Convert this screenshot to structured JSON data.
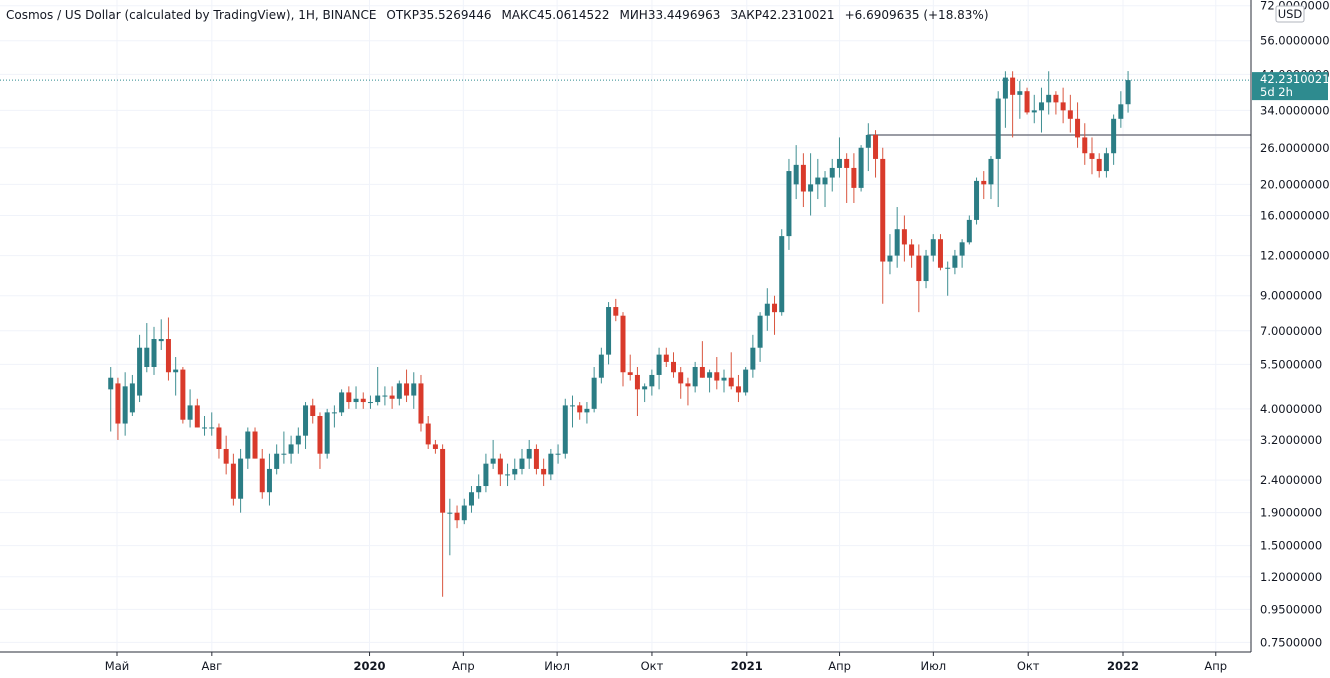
{
  "header": {
    "symbol": "Cosmos / US Dollar (calculated by TradingView), 1Н, BINANCE",
    "ohlc": [
      {
        "label": "ОТКР",
        "value": "35.5269446"
      },
      {
        "label": "МАКС",
        "value": "45.0614522"
      },
      {
        "label": "МИН",
        "value": "33.4496963"
      },
      {
        "label": "ЗАКР",
        "value": "42.2310021"
      }
    ],
    "change": "+6.6909635 (+18.83%)"
  },
  "price_scale": {
    "currency": "USD",
    "last_price": "42.2310021",
    "countdown": "5d 2h",
    "horizontal_level": 28.5
  },
  "colors": {
    "up": "#26a69a",
    "down": "#ef5350",
    "up_body": "#2b7d85",
    "down_body": "#d93a2b",
    "up_wick": "#3f8f92",
    "down_wick": "#d9563f",
    "last_price_label": "#2e8b8f",
    "level_line": "#787b86",
    "axis_border": "#2a2e39"
  },
  "chart_data": {
    "type": "candlestick",
    "title": "Cosmos / US Dollar (calculated by TradingView), 1Н, BINANCE",
    "xlabel": "",
    "ylabel": "",
    "y_scale": "log",
    "ylim": [
      0.68,
      75
    ],
    "x_ticks": [
      {
        "label": "Май",
        "bold": false,
        "at": "2019-05-01"
      },
      {
        "label": "Авг",
        "bold": false,
        "at": "2019-08-01"
      },
      {
        "label": "2020",
        "bold": true,
        "at": "2020-01-01"
      },
      {
        "label": "Апр",
        "bold": false,
        "at": "2020-04-01"
      },
      {
        "label": "Июл",
        "bold": false,
        "at": "2020-07-01"
      },
      {
        "label": "Окт",
        "bold": false,
        "at": "2020-10-01"
      },
      {
        "label": "2021",
        "bold": true,
        "at": "2021-01-01"
      },
      {
        "label": "Апр",
        "bold": false,
        "at": "2021-04-01"
      },
      {
        "label": "Июл",
        "bold": false,
        "at": "2021-07-01"
      },
      {
        "label": "Окт",
        "bold": false,
        "at": "2021-10-01"
      },
      {
        "label": "2022",
        "bold": true,
        "at": "2022-01-01"
      },
      {
        "label": "Апр",
        "bold": false,
        "at": "2022-04-01"
      }
    ],
    "y_ticks": [
      "72.0000000",
      "56.0000000",
      "44.0000000",
      "34.0000000",
      "26.0000000",
      "20.0000000",
      "16.0000000",
      "12.0000000",
      "9.0000000",
      "7.0000000",
      "5.5000000",
      "4.0000000",
      "3.2000000",
      "2.4000000",
      "1.9000000",
      "1.5000000",
      "1.2000000",
      "0.9500000",
      "0.7500000"
    ],
    "legend": null,
    "grid": true,
    "candles": [
      {
        "date": "2019-04-22",
        "o": 4.6,
        "h": 5.4,
        "l": 3.4,
        "c": 5.0
      },
      {
        "date": "2019-04-29",
        "o": 4.8,
        "h": 5.0,
        "l": 3.2,
        "c": 3.6
      },
      {
        "date": "2019-05-06",
        "o": 3.6,
        "h": 5.2,
        "l": 3.3,
        "c": 4.7
      },
      {
        "date": "2019-05-13",
        "o": 3.9,
        "h": 5.1,
        "l": 3.8,
        "c": 4.8
      },
      {
        "date": "2019-05-20",
        "o": 4.4,
        "h": 6.8,
        "l": 4.2,
        "c": 6.2
      },
      {
        "date": "2019-05-27",
        "o": 5.4,
        "h": 7.4,
        "l": 5.2,
        "c": 6.2
      },
      {
        "date": "2019-06-03",
        "o": 5.4,
        "h": 7.2,
        "l": 5.1,
        "c": 6.6
      },
      {
        "date": "2019-06-10",
        "o": 6.5,
        "h": 7.6,
        "l": 6.1,
        "c": 6.6
      },
      {
        "date": "2019-06-17",
        "o": 6.6,
        "h": 7.7,
        "l": 4.9,
        "c": 5.2
      },
      {
        "date": "2019-06-24",
        "o": 5.2,
        "h": 5.8,
        "l": 4.4,
        "c": 5.3
      },
      {
        "date": "2019-07-01",
        "o": 5.3,
        "h": 5.4,
        "l": 3.6,
        "c": 3.7
      },
      {
        "date": "2019-07-08",
        "o": 3.7,
        "h": 4.6,
        "l": 3.5,
        "c": 4.1
      },
      {
        "date": "2019-07-15",
        "o": 4.1,
        "h": 4.3,
        "l": 3.5,
        "c": 3.5
      },
      {
        "date": "2019-07-22",
        "o": 3.5,
        "h": 3.8,
        "l": 3.3,
        "c": 3.5
      },
      {
        "date": "2019-07-29",
        "o": 3.5,
        "h": 3.9,
        "l": 3.3,
        "c": 3.5
      },
      {
        "date": "2019-08-05",
        "o": 3.5,
        "h": 3.6,
        "l": 2.8,
        "c": 3.0
      },
      {
        "date": "2019-08-12",
        "o": 3.0,
        "h": 3.3,
        "l": 2.5,
        "c": 2.7
      },
      {
        "date": "2019-08-19",
        "o": 2.7,
        "h": 2.9,
        "l": 2.0,
        "c": 2.1
      },
      {
        "date": "2019-08-26",
        "o": 2.1,
        "h": 3.0,
        "l": 1.9,
        "c": 2.8
      },
      {
        "date": "2019-09-02",
        "o": 2.8,
        "h": 3.5,
        "l": 2.6,
        "c": 3.4
      },
      {
        "date": "2019-09-09",
        "o": 3.4,
        "h": 3.5,
        "l": 2.8,
        "c": 2.8
      },
      {
        "date": "2019-09-16",
        "o": 2.8,
        "h": 3.0,
        "l": 2.1,
        "c": 2.2
      },
      {
        "date": "2019-09-23",
        "o": 2.2,
        "h": 2.9,
        "l": 2.0,
        "c": 2.6
      },
      {
        "date": "2019-09-30",
        "o": 2.6,
        "h": 3.1,
        "l": 2.5,
        "c": 2.9
      },
      {
        "date": "2019-10-07",
        "o": 2.9,
        "h": 3.4,
        "l": 2.7,
        "c": 2.9
      },
      {
        "date": "2019-10-14",
        "o": 2.9,
        "h": 3.3,
        "l": 2.7,
        "c": 3.1
      },
      {
        "date": "2019-10-21",
        "o": 3.1,
        "h": 3.5,
        "l": 2.9,
        "c": 3.3
      },
      {
        "date": "2019-10-28",
        "o": 3.3,
        "h": 4.2,
        "l": 3.0,
        "c": 4.1
      },
      {
        "date": "2019-11-04",
        "o": 4.1,
        "h": 4.3,
        "l": 3.6,
        "c": 3.8
      },
      {
        "date": "2019-11-11",
        "o": 3.8,
        "h": 3.9,
        "l": 2.6,
        "c": 2.9
      },
      {
        "date": "2019-11-18",
        "o": 2.9,
        "h": 4.0,
        "l": 2.8,
        "c": 3.9
      },
      {
        "date": "2019-11-25",
        "o": 3.9,
        "h": 4.1,
        "l": 3.5,
        "c": 3.9
      },
      {
        "date": "2019-12-02",
        "o": 3.9,
        "h": 4.6,
        "l": 3.8,
        "c": 4.5
      },
      {
        "date": "2019-12-09",
        "o": 4.5,
        "h": 4.7,
        "l": 4.0,
        "c": 4.2
      },
      {
        "date": "2019-12-16",
        "o": 4.2,
        "h": 4.7,
        "l": 4.0,
        "c": 4.3
      },
      {
        "date": "2019-12-23",
        "o": 4.3,
        "h": 4.5,
        "l": 4.0,
        "c": 4.2
      },
      {
        "date": "2019-12-30",
        "o": 4.2,
        "h": 4.4,
        "l": 4.0,
        "c": 4.2
      },
      {
        "date": "2020-01-06",
        "o": 4.2,
        "h": 5.4,
        "l": 4.1,
        "c": 4.4
      },
      {
        "date": "2020-01-13",
        "o": 4.4,
        "h": 4.7,
        "l": 4.1,
        "c": 4.4
      },
      {
        "date": "2020-01-20",
        "o": 4.4,
        "h": 4.7,
        "l": 4.0,
        "c": 4.3
      },
      {
        "date": "2020-01-27",
        "o": 4.3,
        "h": 4.9,
        "l": 4.1,
        "c": 4.8
      },
      {
        "date": "2020-02-03",
        "o": 4.8,
        "h": 5.3,
        "l": 4.2,
        "c": 4.4
      },
      {
        "date": "2020-02-10",
        "o": 4.4,
        "h": 5.2,
        "l": 4.0,
        "c": 4.8
      },
      {
        "date": "2020-02-17",
        "o": 4.8,
        "h": 5.1,
        "l": 3.4,
        "c": 3.6
      },
      {
        "date": "2020-02-24",
        "o": 3.6,
        "h": 3.8,
        "l": 3.0,
        "c": 3.1
      },
      {
        "date": "2020-03-02",
        "o": 3.1,
        "h": 3.2,
        "l": 2.9,
        "c": 3.0
      },
      {
        "date": "2020-03-09",
        "o": 3.0,
        "h": 3.1,
        "l": 1.04,
        "c": 1.9
      },
      {
        "date": "2020-03-16",
        "o": 1.9,
        "h": 2.1,
        "l": 1.4,
        "c": 1.9
      },
      {
        "date": "2020-03-23",
        "o": 1.9,
        "h": 2.0,
        "l": 1.7,
        "c": 1.8
      },
      {
        "date": "2020-03-30",
        "o": 1.8,
        "h": 2.1,
        "l": 1.75,
        "c": 2.0
      },
      {
        "date": "2020-04-06",
        "o": 2.0,
        "h": 2.3,
        "l": 1.9,
        "c": 2.2
      },
      {
        "date": "2020-04-13",
        "o": 2.2,
        "h": 2.5,
        "l": 2.1,
        "c": 2.3
      },
      {
        "date": "2020-04-20",
        "o": 2.3,
        "h": 2.9,
        "l": 2.2,
        "c": 2.7
      },
      {
        "date": "2020-04-27",
        "o": 2.7,
        "h": 3.2,
        "l": 2.6,
        "c": 2.8
      },
      {
        "date": "2020-05-04",
        "o": 2.8,
        "h": 2.9,
        "l": 2.3,
        "c": 2.5
      },
      {
        "date": "2020-05-11",
        "o": 2.5,
        "h": 2.7,
        "l": 2.3,
        "c": 2.5
      },
      {
        "date": "2020-05-18",
        "o": 2.5,
        "h": 2.8,
        "l": 2.4,
        "c": 2.6
      },
      {
        "date": "2020-05-25",
        "o": 2.6,
        "h": 3.0,
        "l": 2.5,
        "c": 2.8
      },
      {
        "date": "2020-06-01",
        "o": 2.8,
        "h": 3.2,
        "l": 2.6,
        "c": 3.0
      },
      {
        "date": "2020-06-08",
        "o": 3.0,
        "h": 3.1,
        "l": 2.5,
        "c": 2.6
      },
      {
        "date": "2020-06-15",
        "o": 2.6,
        "h": 2.8,
        "l": 2.3,
        "c": 2.5
      },
      {
        "date": "2020-06-22",
        "o": 2.5,
        "h": 3.0,
        "l": 2.4,
        "c": 2.9
      },
      {
        "date": "2020-06-29",
        "o": 2.9,
        "h": 3.1,
        "l": 2.7,
        "c": 2.9
      },
      {
        "date": "2020-07-06",
        "o": 2.9,
        "h": 4.3,
        "l": 2.8,
        "c": 4.1
      },
      {
        "date": "2020-07-13",
        "o": 4.1,
        "h": 4.4,
        "l": 3.5,
        "c": 4.1
      },
      {
        "date": "2020-07-20",
        "o": 4.1,
        "h": 4.2,
        "l": 3.7,
        "c": 3.9
      },
      {
        "date": "2020-07-27",
        "o": 3.9,
        "h": 4.2,
        "l": 3.6,
        "c": 4.0
      },
      {
        "date": "2020-08-03",
        "o": 4.0,
        "h": 5.4,
        "l": 3.9,
        "c": 5.0
      },
      {
        "date": "2020-08-10",
        "o": 5.0,
        "h": 6.2,
        "l": 4.8,
        "c": 5.9
      },
      {
        "date": "2020-08-17",
        "o": 5.9,
        "h": 8.6,
        "l": 5.5,
        "c": 8.3
      },
      {
        "date": "2020-08-24",
        "o": 8.3,
        "h": 8.8,
        "l": 7.5,
        "c": 7.8
      },
      {
        "date": "2020-08-31",
        "o": 7.8,
        "h": 8.0,
        "l": 4.7,
        "c": 5.2
      },
      {
        "date": "2020-09-07",
        "o": 5.2,
        "h": 5.9,
        "l": 4.9,
        "c": 5.1
      },
      {
        "date": "2020-09-14",
        "o": 5.1,
        "h": 5.4,
        "l": 3.8,
        "c": 4.6
      },
      {
        "date": "2020-09-21",
        "o": 4.6,
        "h": 4.8,
        "l": 4.2,
        "c": 4.7
      },
      {
        "date": "2020-09-28",
        "o": 4.7,
        "h": 5.3,
        "l": 4.4,
        "c": 5.1
      },
      {
        "date": "2020-10-05",
        "o": 5.1,
        "h": 6.2,
        "l": 4.6,
        "c": 5.9
      },
      {
        "date": "2020-10-12",
        "o": 5.9,
        "h": 6.2,
        "l": 5.4,
        "c": 5.6
      },
      {
        "date": "2020-10-19",
        "o": 5.6,
        "h": 6.0,
        "l": 5.0,
        "c": 5.2
      },
      {
        "date": "2020-10-26",
        "o": 5.2,
        "h": 5.4,
        "l": 4.3,
        "c": 4.8
      },
      {
        "date": "2020-11-02",
        "o": 4.8,
        "h": 5.0,
        "l": 4.1,
        "c": 4.7
      },
      {
        "date": "2020-11-09",
        "o": 4.7,
        "h": 5.6,
        "l": 4.5,
        "c": 5.4
      },
      {
        "date": "2020-11-16",
        "o": 5.4,
        "h": 6.5,
        "l": 5.0,
        "c": 5.0
      },
      {
        "date": "2020-11-23",
        "o": 5.0,
        "h": 5.3,
        "l": 4.5,
        "c": 5.2
      },
      {
        "date": "2020-11-30",
        "o": 5.2,
        "h": 5.8,
        "l": 4.6,
        "c": 4.9
      },
      {
        "date": "2020-12-07",
        "o": 4.9,
        "h": 5.3,
        "l": 4.5,
        "c": 5.0
      },
      {
        "date": "2020-12-14",
        "o": 5.0,
        "h": 6.0,
        "l": 4.6,
        "c": 4.7
      },
      {
        "date": "2020-12-21",
        "o": 4.7,
        "h": 5.1,
        "l": 4.2,
        "c": 4.5
      },
      {
        "date": "2020-12-28",
        "o": 4.5,
        "h": 5.4,
        "l": 4.4,
        "c": 5.3
      },
      {
        "date": "2021-01-04",
        "o": 5.3,
        "h": 6.8,
        "l": 5.0,
        "c": 6.2
      },
      {
        "date": "2021-01-11",
        "o": 6.2,
        "h": 8.0,
        "l": 5.6,
        "c": 7.8
      },
      {
        "date": "2021-01-18",
        "o": 7.8,
        "h": 9.5,
        "l": 7.0,
        "c": 8.5
      },
      {
        "date": "2021-01-25",
        "o": 8.5,
        "h": 9.0,
        "l": 6.8,
        "c": 8.0
      },
      {
        "date": "2021-02-01",
        "o": 8.0,
        "h": 14.5,
        "l": 7.8,
        "c": 13.8
      },
      {
        "date": "2021-02-08",
        "o": 13.8,
        "h": 24.0,
        "l": 12.5,
        "c": 22.0
      },
      {
        "date": "2021-02-15",
        "o": 20.0,
        "h": 26.5,
        "l": 18.0,
        "c": 23.0
      },
      {
        "date": "2021-02-22",
        "o": 23.0,
        "h": 25.0,
        "l": 17.0,
        "c": 19.0
      },
      {
        "date": "2021-03-01",
        "o": 19.0,
        "h": 25.0,
        "l": 16.0,
        "c": 20.0
      },
      {
        "date": "2021-03-08",
        "o": 20.0,
        "h": 24.0,
        "l": 18.0,
        "c": 21.0
      },
      {
        "date": "2021-03-15",
        "o": 20.0,
        "h": 22.0,
        "l": 17.0,
        "c": 21.0
      },
      {
        "date": "2021-03-22",
        "o": 21.0,
        "h": 24.0,
        "l": 19.0,
        "c": 22.5
      },
      {
        "date": "2021-03-29",
        "o": 22.5,
        "h": 28.0,
        "l": 21.0,
        "c": 24.0
      },
      {
        "date": "2021-04-05",
        "o": 24.0,
        "h": 25.0,
        "l": 17.5,
        "c": 22.5
      },
      {
        "date": "2021-04-12",
        "o": 22.5,
        "h": 25.0,
        "l": 17.5,
        "c": 19.5
      },
      {
        "date": "2021-04-19",
        "o": 19.5,
        "h": 26.5,
        "l": 19.0,
        "c": 26.0
      },
      {
        "date": "2021-04-26",
        "o": 26.0,
        "h": 31.0,
        "l": 22.0,
        "c": 28.5
      },
      {
        "date": "2021-05-03",
        "o": 28.5,
        "h": 29.5,
        "l": 21.0,
        "c": 24.0
      },
      {
        "date": "2021-05-10",
        "o": 24.0,
        "h": 26.0,
        "l": 8.5,
        "c": 11.5
      },
      {
        "date": "2021-05-17",
        "o": 11.5,
        "h": 14.0,
        "l": 10.5,
        "c": 12.0
      },
      {
        "date": "2021-05-24",
        "o": 12.0,
        "h": 17.0,
        "l": 11.0,
        "c": 14.5
      },
      {
        "date": "2021-05-31",
        "o": 14.5,
        "h": 16.0,
        "l": 11.5,
        "c": 13.0
      },
      {
        "date": "2021-06-07",
        "o": 13.0,
        "h": 13.5,
        "l": 11.0,
        "c": 12.0
      },
      {
        "date": "2021-06-14",
        "o": 12.0,
        "h": 13.0,
        "l": 8.0,
        "c": 10.0
      },
      {
        "date": "2021-06-21",
        "o": 10.0,
        "h": 12.5,
        "l": 9.5,
        "c": 12.0
      },
      {
        "date": "2021-06-28",
        "o": 12.0,
        "h": 14.0,
        "l": 11.5,
        "c": 13.5
      },
      {
        "date": "2021-07-05",
        "o": 13.5,
        "h": 14.0,
        "l": 10.8,
        "c": 11.0
      },
      {
        "date": "2021-07-12",
        "o": 11.0,
        "h": 11.5,
        "l": 9.0,
        "c": 11.0
      },
      {
        "date": "2021-07-19",
        "o": 11.0,
        "h": 12.5,
        "l": 10.5,
        "c": 12.0
      },
      {
        "date": "2021-07-26",
        "o": 12.0,
        "h": 13.5,
        "l": 11.0,
        "c": 13.2
      },
      {
        "date": "2021-08-02",
        "o": 13.2,
        "h": 16.0,
        "l": 13.0,
        "c": 15.5
      },
      {
        "date": "2021-08-09",
        "o": 15.5,
        "h": 21.0,
        "l": 15.0,
        "c": 20.5
      },
      {
        "date": "2021-08-16",
        "o": 20.5,
        "h": 22.0,
        "l": 18.0,
        "c": 20.0
      },
      {
        "date": "2021-08-23",
        "o": 20.0,
        "h": 24.5,
        "l": 18.0,
        "c": 24.0
      },
      {
        "date": "2021-08-30",
        "o": 24.0,
        "h": 39.0,
        "l": 17.0,
        "c": 37.0
      },
      {
        "date": "2021-09-06",
        "o": 37.0,
        "h": 45.0,
        "l": 30.0,
        "c": 43.0
      },
      {
        "date": "2021-09-13",
        "o": 43.0,
        "h": 45.0,
        "l": 28.0,
        "c": 38.0
      },
      {
        "date": "2021-09-20",
        "o": 38.0,
        "h": 42.0,
        "l": 32.0,
        "c": 39.0
      },
      {
        "date": "2021-09-27",
        "o": 39.0,
        "h": 40.0,
        "l": 33.0,
        "c": 33.5
      },
      {
        "date": "2021-10-04",
        "o": 33.5,
        "h": 38.0,
        "l": 31.0,
        "c": 34.0
      },
      {
        "date": "2021-10-11",
        "o": 34.0,
        "h": 40.0,
        "l": 29.0,
        "c": 36.0
      },
      {
        "date": "2021-10-18",
        "o": 36.0,
        "h": 45.0,
        "l": 33.0,
        "c": 38.0
      },
      {
        "date": "2021-10-25",
        "o": 38.0,
        "h": 39.0,
        "l": 33.0,
        "c": 36.0
      },
      {
        "date": "2021-11-01",
        "o": 36.0,
        "h": 40.0,
        "l": 31.0,
        "c": 34.0
      },
      {
        "date": "2021-11-08",
        "o": 34.0,
        "h": 38.0,
        "l": 29.0,
        "c": 32.0
      },
      {
        "date": "2021-11-15",
        "o": 32.0,
        "h": 36.0,
        "l": 26.0,
        "c": 28.0
      },
      {
        "date": "2021-11-22",
        "o": 28.0,
        "h": 31.0,
        "l": 23.0,
        "c": 25.0
      },
      {
        "date": "2021-11-29",
        "o": 25.0,
        "h": 28.0,
        "l": 21.5,
        "c": 24.0
      },
      {
        "date": "2021-12-06",
        "o": 24.0,
        "h": 25.0,
        "l": 21.0,
        "c": 22.0
      },
      {
        "date": "2021-12-13",
        "o": 22.0,
        "h": 26.0,
        "l": 21.0,
        "c": 25.0
      },
      {
        "date": "2021-12-20",
        "o": 25.0,
        "h": 33.0,
        "l": 23.0,
        "c": 32.0
      },
      {
        "date": "2021-12-27",
        "o": 32.0,
        "h": 39.0,
        "l": 30.0,
        "c": 35.5
      },
      {
        "date": "2022-01-03",
        "o": 35.5269446,
        "h": 45.0614522,
        "l": 33.4496963,
        "c": 42.2310021
      }
    ]
  }
}
